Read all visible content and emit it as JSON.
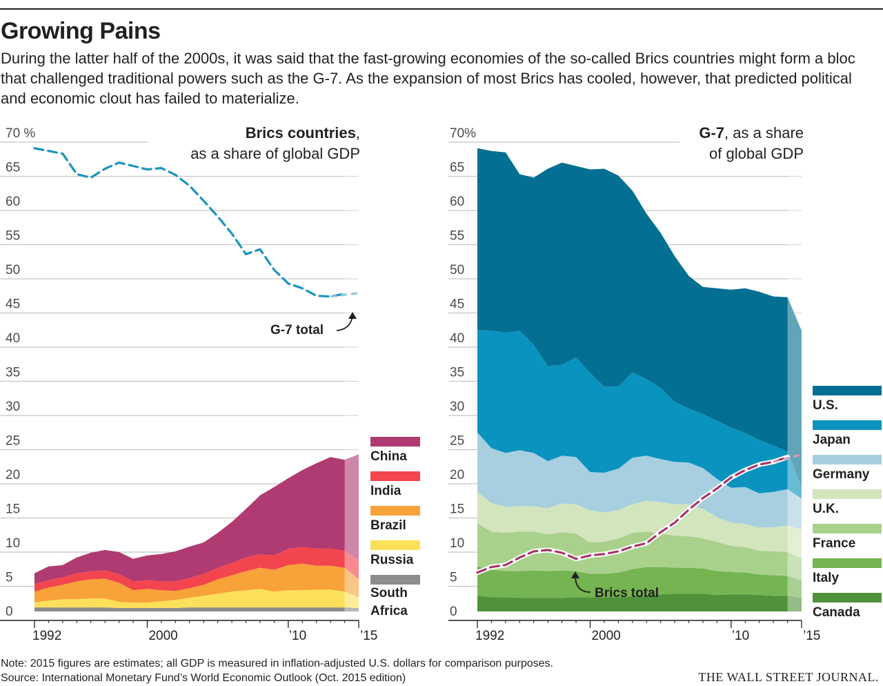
{
  "title": "Growing Pains",
  "subtitle": "During the latter half of the 2000s, it was said that the fast-growing economies of the so-called Brics countries might form a bloc that challenged traditional powers such as the G-7. As the expansion of most Brics has cooled, however, that predicted political and economic clout has failed to materialize.",
  "note": "Note: 2015 figures are estimates; all GDP is measured in inflation-adjusted U.S. dollars for comparison purposes.",
  "source": "Source: International Monetary Fund’s World Economic Outlook (Oct. 2015 edition)",
  "publisher": "THE WALL STREET JOURNAL.",
  "colors": {
    "China": "#b03a72",
    "India": "#f2454d",
    "Brazil": "#f8a23a",
    "Russia": "#fde05a",
    "South Africa": "#8c8c8c",
    "U.S.": "#036f92",
    "Japan": "#0a93bf",
    "Germany": "#a7cfe0",
    "U.K.": "#d3e5bd",
    "France": "#a9d18c",
    "Italy": "#74b451",
    "Canada": "#4f923b",
    "g7_line": "#1b93bd",
    "brics_line": "#a6356a"
  },
  "chart_data": [
    {
      "type": "area",
      "title": "Brics countries",
      "subtitle": ", as a share of global GDP",
      "x": [
        1992,
        1993,
        1994,
        1995,
        1996,
        1997,
        1998,
        1999,
        2000,
        2001,
        2002,
        2003,
        2004,
        2005,
        2006,
        2007,
        2008,
        2009,
        2010,
        2011,
        2012,
        2013,
        2014,
        2015
      ],
      "x_tick_labels": [
        "1992",
        "2000",
        "’10",
        "’15"
      ],
      "y_tick_labels": [
        "70 %",
        "65",
        "60",
        "55",
        "50",
        "45",
        "40",
        "35",
        "30",
        "25",
        "20",
        "15",
        "10",
        "5",
        "0"
      ],
      "ylim": [
        0,
        70
      ],
      "stacked": true,
      "estimate_from": 2014,
      "series": [
        {
          "name": "South Africa",
          "values": [
            0.6,
            0.6,
            0.6,
            0.6,
            0.6,
            0.6,
            0.5,
            0.5,
            0.5,
            0.5,
            0.5,
            0.6,
            0.6,
            0.6,
            0.6,
            0.6,
            0.6,
            0.6,
            0.6,
            0.6,
            0.6,
            0.6,
            0.6,
            0.5
          ]
        },
        {
          "name": "Russia",
          "values": [
            0.7,
            1.0,
            1.2,
            1.2,
            1.3,
            1.3,
            0.9,
            0.8,
            0.8,
            1.0,
            1.2,
            1.4,
            1.7,
            2.0,
            2.3,
            2.5,
            2.7,
            2.3,
            2.5,
            2.5,
            2.6,
            2.6,
            2.3,
            1.6
          ]
        },
        {
          "name": "Brazil",
          "values": [
            1.6,
            1.9,
            2.1,
            2.6,
            2.8,
            2.9,
            2.8,
            1.8,
            2.0,
            1.6,
            1.3,
            1.4,
            1.6,
            2.1,
            2.4,
            2.8,
            3.1,
            3.2,
            3.7,
            3.9,
            3.5,
            3.5,
            3.5,
            2.6
          ]
        },
        {
          "name": "India",
          "values": [
            1.1,
            1.1,
            1.1,
            1.2,
            1.2,
            1.2,
            1.3,
            1.3,
            1.3,
            1.3,
            1.4,
            1.5,
            1.6,
            1.7,
            1.8,
            2.0,
            2.0,
            2.1,
            2.4,
            2.4,
            2.5,
            2.5,
            2.5,
            2.8
          ]
        },
        {
          "name": "China",
          "values": [
            1.6,
            2.0,
            1.8,
            2.3,
            2.7,
            3.0,
            3.2,
            3.3,
            3.6,
            4.0,
            4.4,
            4.6,
            4.6,
            5.1,
            6.0,
            7.1,
            8.6,
            10.0,
            10.3,
            11.3,
            12.5,
            13.4,
            13.3,
            15.5
          ]
        }
      ],
      "g7_total": [
        67.8,
        67.4,
        67.0,
        64.0,
        63.5,
        64.8,
        65.7,
        65.2,
        64.7,
        64.9,
        63.9,
        62.3,
        60.1,
        57.8,
        55.3,
        52.3,
        53.0,
        50.0,
        48.0,
        47.3,
        46.2,
        46.1,
        46.5
      ],
      "g7_total_x": [
        1992,
        1993,
        1994,
        1995,
        1996,
        1997,
        1998,
        1999,
        2000,
        2001,
        2002,
        2003,
        2004,
        2005,
        2006,
        2007,
        2008,
        2009,
        2010,
        2011,
        2012,
        2013,
        2014
      ],
      "annotation": "G-7 total",
      "legend": [
        "China",
        "India",
        "Brazil",
        "Russia",
        "South Africa"
      ]
    },
    {
      "type": "area",
      "title": "G-7",
      "subtitle": ", as a share of global GDP",
      "x": [
        1992,
        1993,
        1994,
        1995,
        1996,
        1997,
        1998,
        1999,
        2000,
        2001,
        2002,
        2003,
        2004,
        2005,
        2006,
        2007,
        2008,
        2009,
        2010,
        2011,
        2012,
        2013,
        2014,
        2015
      ],
      "x_tick_labels": [
        "1992",
        "2000",
        "’10",
        "’15"
      ],
      "y_tick_labels": [
        "70%",
        "65",
        "60",
        "55",
        "50",
        "45",
        "40",
        "35",
        "30",
        "25",
        "20",
        "15",
        "10",
        "5",
        "0"
      ],
      "ylim": [
        0,
        70
      ],
      "stacked": true,
      "estimate_from": 2014,
      "series": [
        {
          "name": "Canada",
          "values": [
            2.3,
            2.1,
            2.1,
            2.0,
            2.0,
            2.0,
            2.0,
            2.1,
            2.1,
            2.1,
            2.1,
            2.2,
            2.3,
            2.5,
            2.6,
            2.6,
            2.6,
            2.4,
            2.5,
            2.5,
            2.4,
            2.3,
            2.3,
            2.0
          ]
        },
        {
          "name": "Italy",
          "values": [
            4.3,
            4.0,
            3.8,
            3.9,
            4.0,
            3.9,
            4.0,
            3.8,
            3.4,
            3.4,
            3.6,
            4.0,
            4.2,
            4.0,
            3.8,
            3.8,
            3.7,
            3.5,
            3.3,
            3.2,
            3.0,
            3.0,
            2.9,
            2.6
          ]
        },
        {
          "name": "France",
          "values": [
            6.3,
            5.6,
            5.6,
            5.8,
            5.7,
            5.4,
            5.6,
            5.5,
            4.6,
            4.7,
            5.0,
            5.3,
            5.2,
            4.9,
            4.7,
            4.6,
            4.4,
            4.3,
            3.8,
            3.7,
            3.5,
            3.5,
            3.5,
            3.2
          ]
        },
        {
          "name": "U.K.",
          "values": [
            4.6,
            4.2,
            3.8,
            3.7,
            3.7,
            3.8,
            4.2,
            4.3,
            4.7,
            4.3,
            4.1,
            4.2,
            4.5,
            4.6,
            4.6,
            4.7,
            4.3,
            3.6,
            3.4,
            3.4,
            3.4,
            3.5,
            3.9,
            4.2
          ]
        },
        {
          "name": "Germany",
          "values": [
            8.7,
            8.0,
            7.9,
            8.2,
            7.8,
            6.9,
            7.0,
            6.9,
            5.6,
            5.8,
            6.1,
            6.8,
            6.6,
            6.3,
            6.2,
            6.1,
            6.0,
            5.6,
            5.1,
            5.4,
            5.0,
            5.2,
            5.3,
            4.5
          ]
        },
        {
          "name": "Japan",
          "values": [
            15.0,
            17.2,
            17.6,
            17.5,
            15.8,
            13.9,
            13.3,
            14.6,
            14.5,
            12.6,
            12.0,
            12.5,
            11.2,
            10.4,
            8.8,
            7.9,
            7.9,
            8.5,
            8.8,
            7.9,
            7.8,
            6.8,
            5.5,
            1.7
          ]
        },
        {
          "name": "U.S.",
          "values": [
            26.6,
            26.3,
            26.4,
            22.9,
            24.5,
            28.9,
            29.6,
            28.0,
            29.8,
            31.9,
            30.9,
            26.6,
            24.2,
            22.7,
            21.3,
            19.4,
            18.6,
            19.4,
            20.2,
            21.2,
            21.7,
            21.8,
            22.6,
            22.9
          ]
        }
      ],
      "brics_total": [
        5.7,
        6.5,
        6.8,
        7.9,
        8.8,
        9.0,
        8.6,
        7.7,
        8.2,
        8.4,
        8.8,
        9.5,
        10.0,
        11.6,
        13.0,
        14.9,
        16.6,
        18.0,
        19.6,
        20.7,
        21.5,
        21.9,
        22.6
      ],
      "brics_total_x": [
        1992,
        1993,
        1994,
        1995,
        1996,
        1997,
        1998,
        1999,
        2000,
        2001,
        2002,
        2003,
        2004,
        2005,
        2006,
        2007,
        2008,
        2009,
        2010,
        2011,
        2012,
        2013,
        2014
      ],
      "annotation": "Brics total",
      "legend": [
        "U.S.",
        "Japan",
        "Germany",
        "U.K.",
        "France",
        "Italy",
        "Canada"
      ]
    }
  ]
}
